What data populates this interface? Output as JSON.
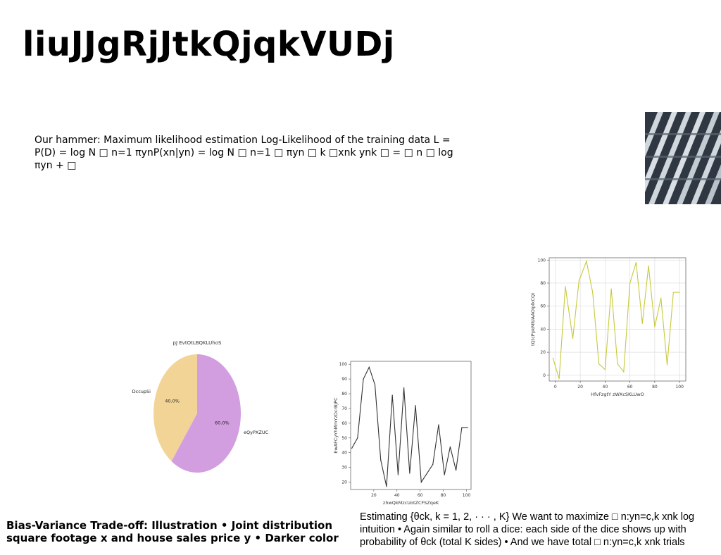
{
  "title": "liuJJgRjJtkQjqkVUDj",
  "body_text": "Our hammer: Maximum likelihood estimation Log-Likelihood of the training data L = P(D) = log N □ n=1 πynP(xn|yn) = log N □ n=1 □ πyn □ k □xnk ynk □ = □ n □ log πyn + □",
  "bottom_left_text": "Bias-Variance Trade-off: Illustration • Joint distribution square footage x and house sales price y • Darker color",
  "bottom_right_text": "Estimating {θck, k = 1, 2, · · · , K} We want to maximize □ n:yn=c,k xnk log intuition • Again similar to roll a dice: each side of the dice shows up with probability of θck (total K sides) • And we have total □ n:yn=c,k xnk trials",
  "image_alt": "building facade photo",
  "chart_data": [
    {
      "type": "pie",
      "title": "pJ EvtOtLBQKLUhoS",
      "labels": [
        "DccupSi",
        "eQyPXZUC"
      ],
      "values": [
        40.0,
        60.0
      ],
      "pct_labels": [
        "40.0%",
        "60.0%"
      ],
      "colors": [
        "#f2d596",
        "#d29ee0"
      ]
    },
    {
      "type": "line",
      "title": "",
      "xlabel": "zhwQkMzcUotZCFSZqeK",
      "ylabel": "EwAFCyYhMmYzDcrBjPC",
      "xlim": [
        0,
        104
      ],
      "ylim": [
        15,
        102
      ],
      "xticks": [
        20,
        40,
        60,
        80,
        100
      ],
      "yticks": [
        20,
        30,
        40,
        50,
        60,
        70,
        80,
        90,
        100
      ],
      "grid": false,
      "color": "#333333",
      "x": [
        1,
        6,
        11,
        16,
        21,
        26,
        31,
        36,
        41,
        46,
        51,
        56,
        61,
        66,
        71,
        76,
        81,
        86,
        91,
        96,
        101
      ],
      "y": [
        43,
        50,
        90,
        98,
        86,
        35,
        17,
        79,
        25,
        84,
        26,
        72,
        20,
        26,
        32,
        59,
        25,
        44,
        28,
        57,
        57
      ]
    },
    {
      "type": "line",
      "title": "",
      "xlabel": "HfvFzgtY zWXcSKLUwO",
      "ylabel": "tQtcPpkMlUAAOIplkCQI",
      "xlim": [
        -5,
        105
      ],
      "ylim": [
        -5,
        102
      ],
      "xticks": [
        0,
        20,
        40,
        60,
        80,
        100
      ],
      "yticks": [
        0,
        20,
        40,
        60,
        80,
        100
      ],
      "grid": true,
      "color": "#c7c93a",
      "x": [
        -2,
        3,
        8,
        14,
        19,
        25,
        30,
        35,
        40,
        45,
        50,
        55,
        60,
        65,
        70,
        75,
        80,
        85,
        90,
        95,
        100
      ],
      "y": [
        15,
        -3,
        77,
        32,
        82,
        99,
        72,
        10,
        5,
        75,
        10,
        3,
        80,
        98,
        45,
        95,
        42,
        67,
        9,
        72,
        72
      ]
    }
  ]
}
